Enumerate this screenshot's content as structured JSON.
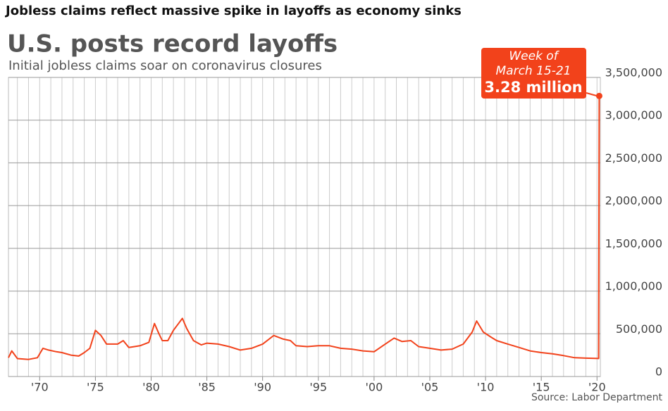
{
  "headline": "Jobless claims reflect massive spike in layoffs as economy sinks",
  "chart_data": {
    "type": "line",
    "title": "U.S. posts record layoffs",
    "subtitle": "Initial jobless claims soar on coronavirus closures",
    "source": "Source: Labor Department",
    "annotation": [
      "Week of",
      "March 15-21",
      "3.28 million"
    ],
    "x": [
      1967.2,
      1967.5,
      1968,
      1969,
      1969.8,
      1970.3,
      1970.8,
      1971.5,
      1972,
      1972.8,
      1973.5,
      1974,
      1974.5,
      1975,
      1975.5,
      1976,
      1977,
      1977.5,
      1978,
      1979,
      1979.8,
      1980.3,
      1980.7,
      1981,
      1981.5,
      1982,
      1982.8,
      1983.2,
      1983.8,
      1984.5,
      1985,
      1986,
      1987,
      1988,
      1989,
      1990,
      1991,
      1991.8,
      1992.5,
      1993,
      1994,
      1995,
      1996,
      1997,
      1998,
      1999,
      2000,
      2001,
      2001.8,
      2002.5,
      2003.3,
      2004,
      2005,
      2006,
      2007,
      2008,
      2008.8,
      2009.2,
      2009.8,
      2010.5,
      2011,
      2012,
      2013,
      2014,
      2015,
      2016,
      2017,
      2018,
      2019,
      2020.15,
      2020.2
    ],
    "series": [
      {
        "name": "Initial jobless claims",
        "color": "#f2421b",
        "values": [
          220000,
          300000,
          210000,
          200000,
          220000,
          330000,
          310000,
          290000,
          280000,
          250000,
          240000,
          280000,
          330000,
          540000,
          480000,
          380000,
          380000,
          420000,
          340000,
          360000,
          400000,
          620000,
          500000,
          420000,
          420000,
          540000,
          680000,
          560000,
          420000,
          370000,
          390000,
          380000,
          350000,
          310000,
          330000,
          380000,
          480000,
          440000,
          420000,
          360000,
          350000,
          360000,
          360000,
          330000,
          320000,
          300000,
          290000,
          380000,
          450000,
          410000,
          420000,
          350000,
          330000,
          310000,
          320000,
          380000,
          520000,
          650000,
          520000,
          460000,
          420000,
          380000,
          340000,
          300000,
          280000,
          265000,
          245000,
          220000,
          215000,
          211000,
          3283000
        ]
      }
    ],
    "xlim": [
      1967.2,
      2020.3
    ],
    "xticks": [
      {
        "value": 1970,
        "label": "'70"
      },
      {
        "value": 1975,
        "label": "'75"
      },
      {
        "value": 1980,
        "label": "'80"
      },
      {
        "value": 1985,
        "label": "'85"
      },
      {
        "value": 1990,
        "label": "'90"
      },
      {
        "value": 1995,
        "label": "'95"
      },
      {
        "value": 2000,
        "label": "'00"
      },
      {
        "value": 2005,
        "label": "'05"
      },
      {
        "value": 2010,
        "label": "'10"
      },
      {
        "value": 2015,
        "label": "'15"
      },
      {
        "value": 2020,
        "label": "'20"
      }
    ],
    "xminorticks": [
      1968,
      1969,
      1970,
      1971,
      1972,
      1973,
      1974,
      1975,
      1976,
      1977,
      1978,
      1979,
      1980,
      1981,
      1982,
      1983,
      1984,
      1985,
      1986,
      1987,
      1988,
      1989,
      1990,
      1991,
      1992,
      1993,
      1994,
      1995,
      1996,
      1997,
      1998,
      1999,
      2000,
      2001,
      2002,
      2003,
      2004,
      2005,
      2006,
      2007,
      2008,
      2009,
      2010,
      2011,
      2012,
      2013,
      2014,
      2015,
      2016,
      2017,
      2018,
      2019,
      2020
    ],
    "ylim": [
      0,
      3500000
    ],
    "yticks": [
      0,
      {
        "value": 500000,
        "label": "500,000"
      },
      {
        "value": 1000000,
        "label": "1,000,000"
      },
      {
        "value": 1500000,
        "label": "1,500,000"
      },
      {
        "value": 2000000,
        "label": "2,000,000"
      },
      {
        "value": 2500000,
        "label": "2,500,000"
      },
      {
        "value": 3000000,
        "label": "3,000,000"
      },
      {
        "value": 3500000,
        "label": "3,500,000"
      }
    ],
    "grid": true
  }
}
